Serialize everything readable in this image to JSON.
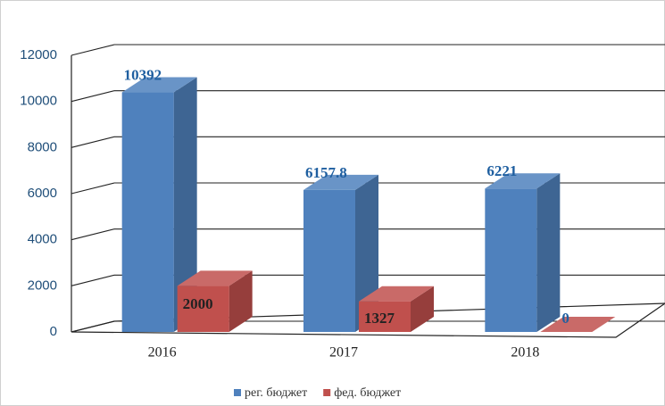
{
  "chart_data": {
    "type": "bar3d",
    "categories": [
      "2016",
      "2017",
      "2018"
    ],
    "series": [
      {
        "name": "рег. бюджет",
        "color": "#4f81bd",
        "values": [
          10392,
          6157.8,
          6221
        ]
      },
      {
        "name": "фед. бюджет",
        "color": "#c0504d",
        "values": [
          2000,
          1327,
          0
        ]
      }
    ],
    "ylim": [
      0,
      12000
    ],
    "yticks": [
      0,
      2000,
      4000,
      6000,
      8000,
      10000,
      12000
    ],
    "grid": true,
    "legend": "bottom"
  }
}
